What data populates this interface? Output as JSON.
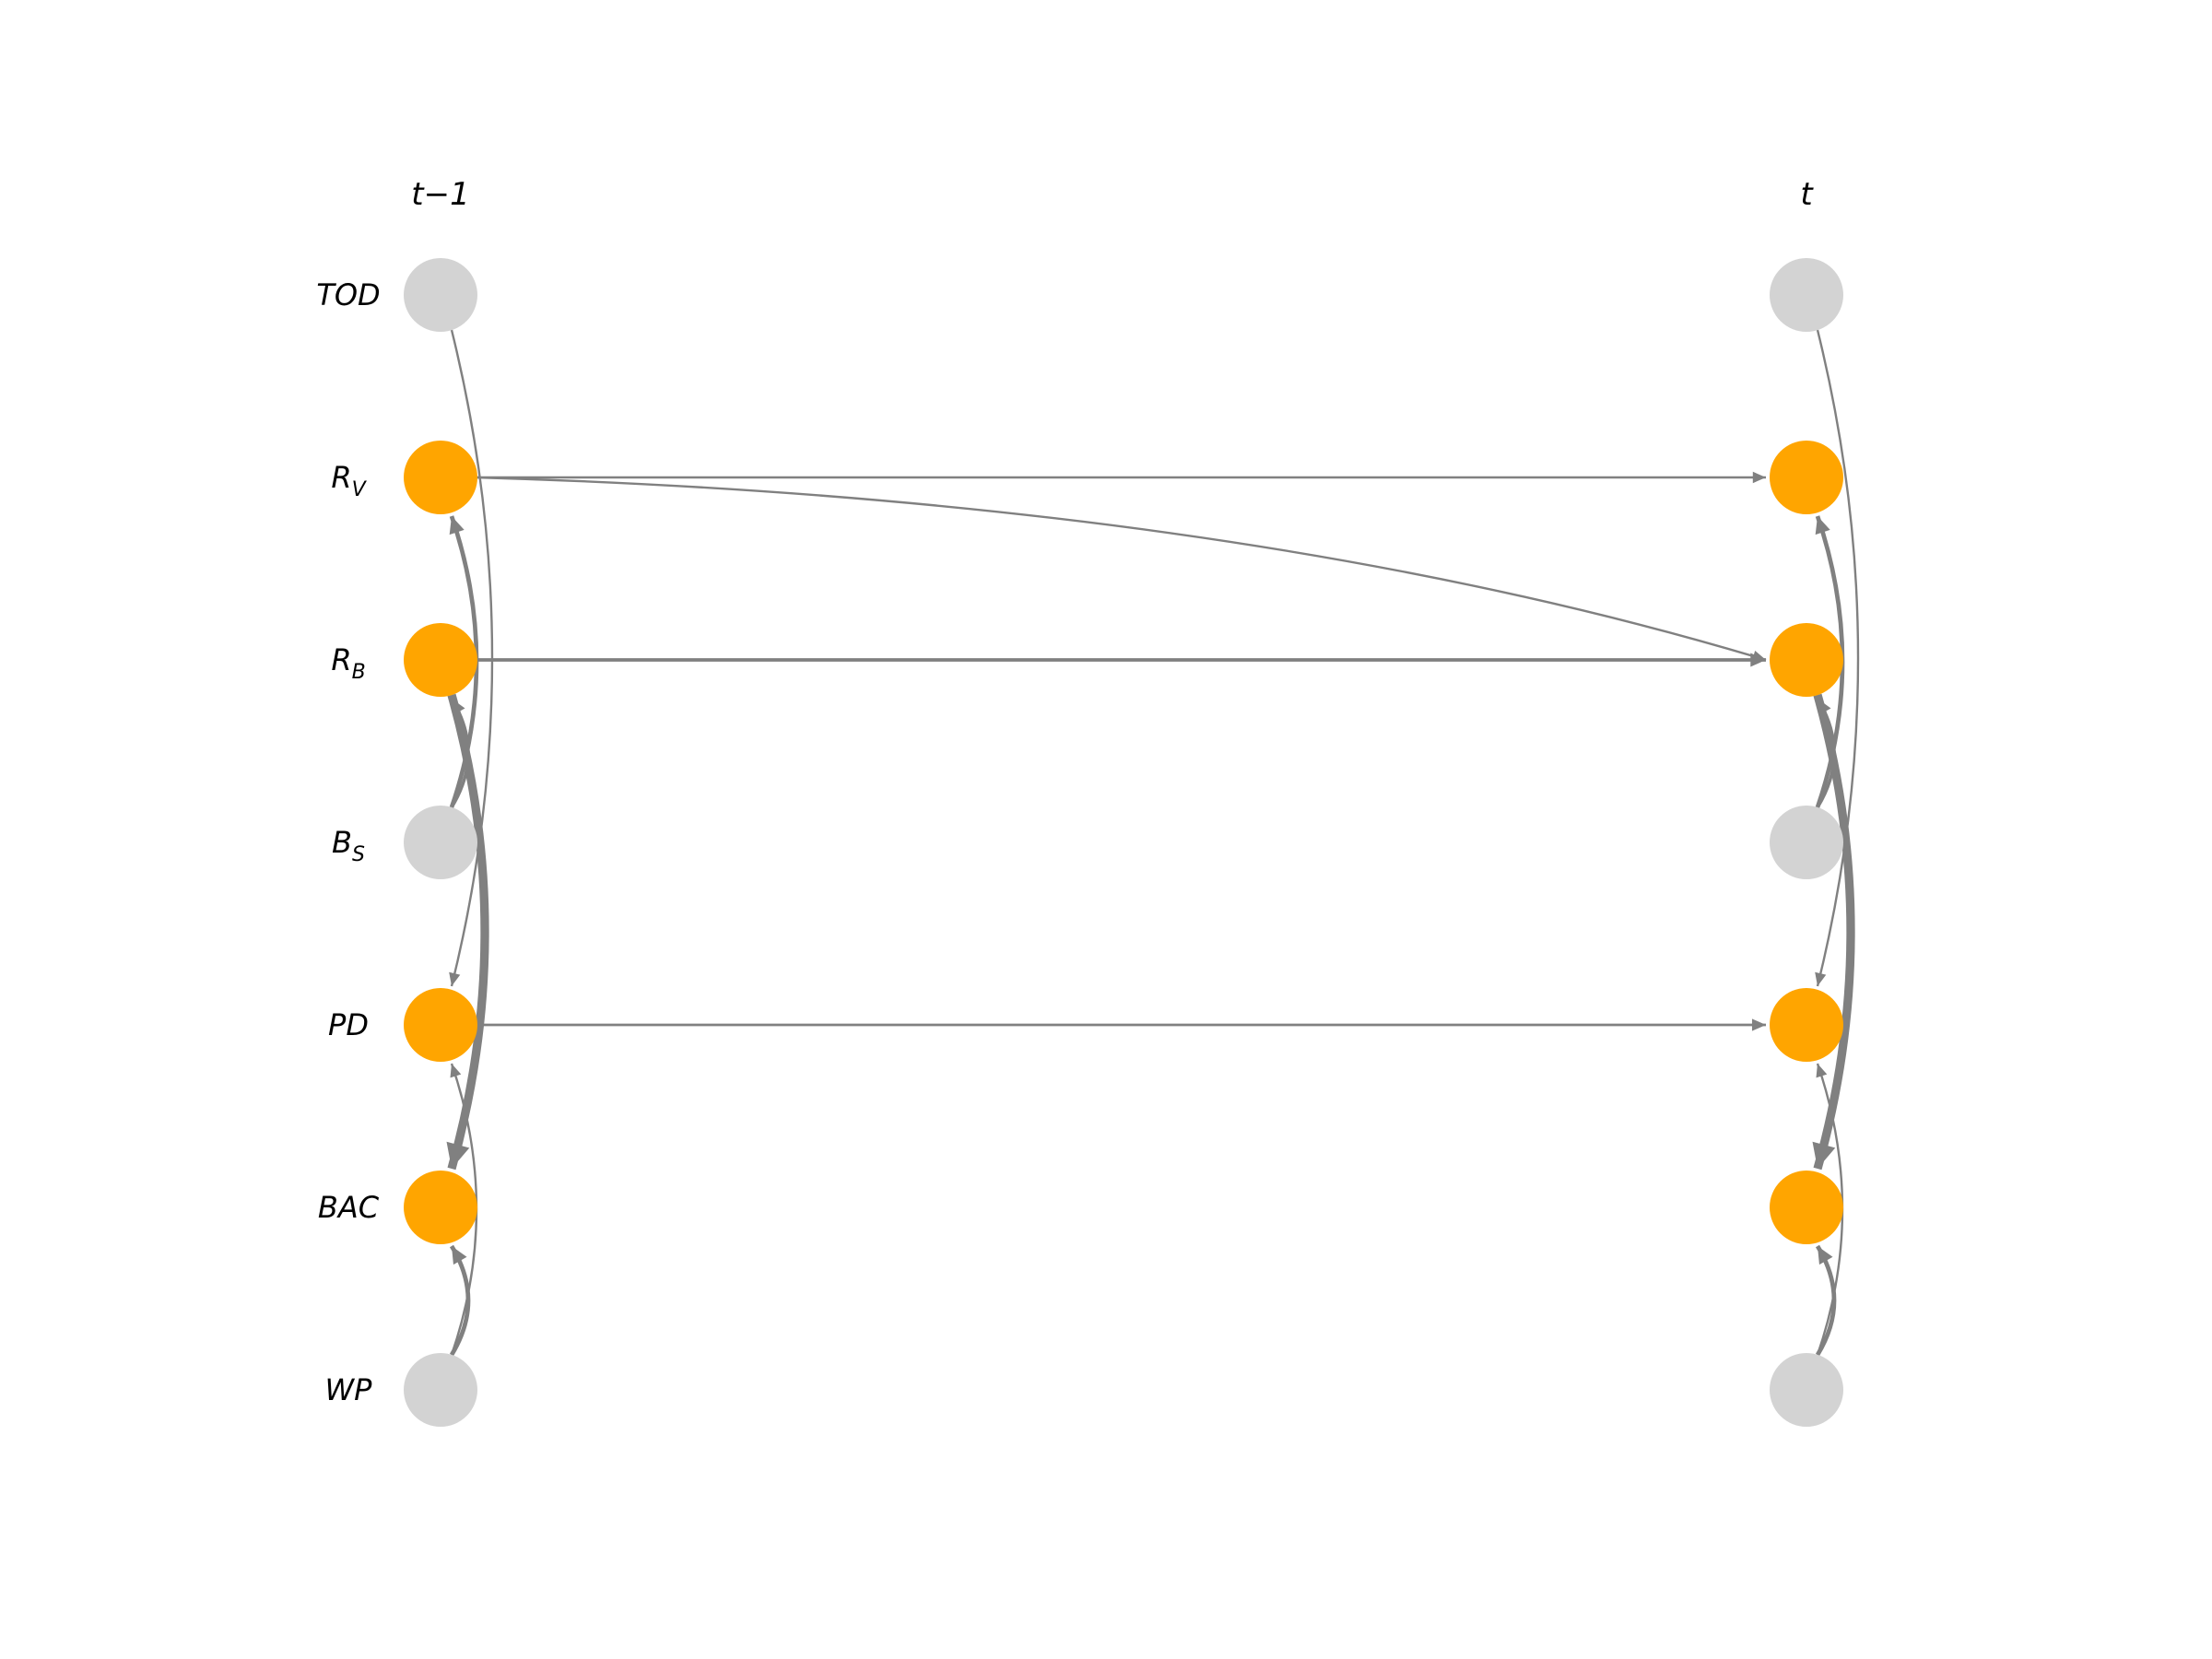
{
  "columns": [
    {
      "key": "prev",
      "header": "t−1"
    },
    {
      "key": "curr",
      "header": "t"
    }
  ],
  "nodes": [
    {
      "id": "TOD",
      "label": "TOD",
      "sub": "",
      "color": "#d3d3d3"
    },
    {
      "id": "RV",
      "label": "R",
      "sub": "V",
      "color": "#ffa500"
    },
    {
      "id": "RB",
      "label": "R",
      "sub": "B",
      "color": "#ffa500"
    },
    {
      "id": "BS",
      "label": "B",
      "sub": "S",
      "color": "#d3d3d3"
    },
    {
      "id": "PD",
      "label": "PD",
      "sub": "",
      "color": "#ffa500"
    },
    {
      "id": "BAC",
      "label": "BAC",
      "sub": "",
      "color": "#ffa500"
    },
    {
      "id": "WP",
      "label": "WP",
      "sub": "",
      "color": "#d3d3d3"
    }
  ],
  "edge_color": "#808080",
  "intra_edges": [
    {
      "from": "TOD",
      "to": "PD",
      "weight": 1
    },
    {
      "from": "BS",
      "to": "RV",
      "weight": 2
    },
    {
      "from": "BS",
      "to": "RB",
      "weight": 1.5
    },
    {
      "from": "RB",
      "to": "BAC",
      "weight": 4
    },
    {
      "from": "WP",
      "to": "PD",
      "weight": 1
    },
    {
      "from": "WP",
      "to": "BAC",
      "weight": 2
    }
  ],
  "inter_edges": [
    {
      "from": "RV",
      "to": "RV",
      "weight": 1
    },
    {
      "from": "RV",
      "to": "RB",
      "weight": 1
    },
    {
      "from": "RB",
      "to": "RB",
      "weight": 1.6
    },
    {
      "from": "PD",
      "to": "PD",
      "weight": 1.2
    }
  ]
}
